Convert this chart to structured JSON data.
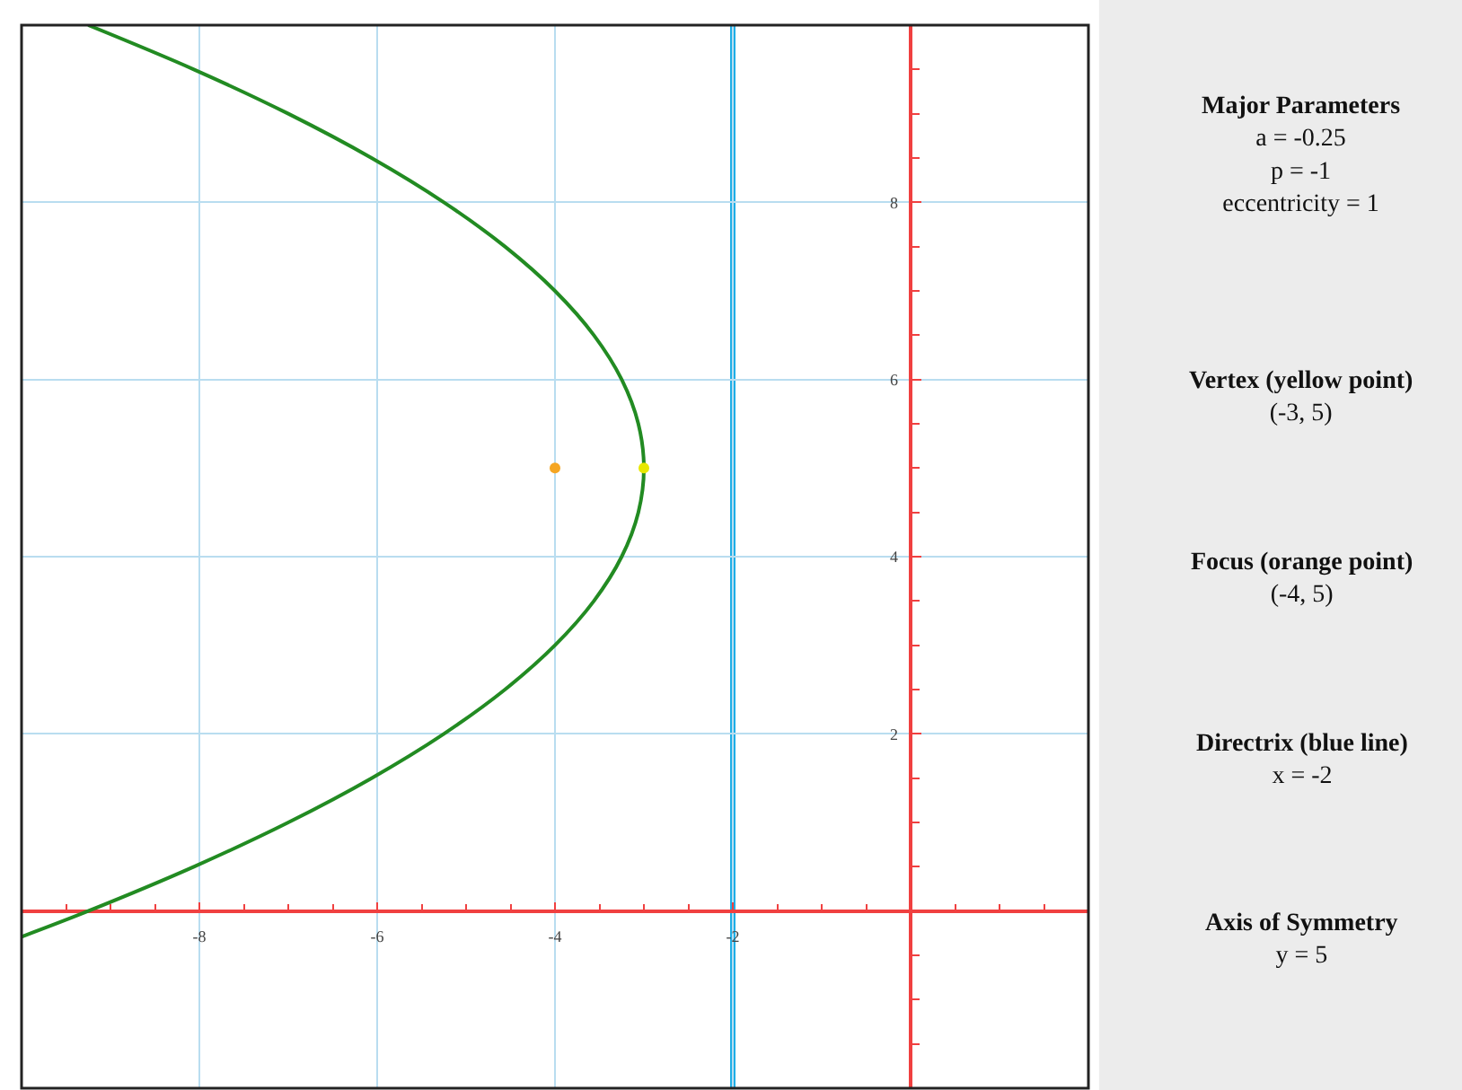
{
  "chart_data": {
    "type": "line",
    "xlim": [
      -10,
      2
    ],
    "ylim": [
      -2,
      10
    ],
    "xticks": [
      -8,
      -6,
      -4,
      -2
    ],
    "yticks": [
      2,
      4,
      6,
      8
    ],
    "grid": true,
    "annotations": [
      "Major Parameters\na = -0.25\np = -1\neccentricity = 1",
      "Vertex (yellow point)\n(-3, 5)",
      "Focus (orange point)\n(-4, 5)",
      "Directrix (blue line)\nx = -2",
      "Axis of Symmetry\ny = 5"
    ],
    "ref_lines": [
      {
        "axis": "x",
        "value": -2,
        "color": "#1eaee6"
      }
    ],
    "series": [
      {
        "color": "#228b22",
        "marker": "none",
        "x": [
          -9.25,
          -8.0625,
          -7,
          -6.0625,
          -5.25,
          -4.5625,
          -4,
          -3.5625,
          -3.25,
          -3.0625,
          -3,
          -3.0625,
          -3.25,
          -3.5625,
          -4,
          -4.5625,
          -5.25,
          -6.0625,
          -7,
          -8.0625,
          -9.25,
          -10
        ],
        "values": [
          10,
          9.5,
          9,
          8.5,
          8,
          7.5,
          7,
          6.5,
          6,
          5.5,
          5,
          4.5,
          4,
          3.5,
          3,
          2.5,
          2,
          1.5,
          1,
          0.5,
          0,
          -0.29
        ]
      },
      {
        "type": "scatter",
        "color": "#f5a623",
        "marker": "circle",
        "x": [
          -4
        ],
        "values": [
          5
        ]
      },
      {
        "type": "scatter",
        "color": "#e8e800",
        "marker": "circle",
        "x": [
          -3
        ],
        "values": [
          5
        ]
      }
    ]
  }
}
